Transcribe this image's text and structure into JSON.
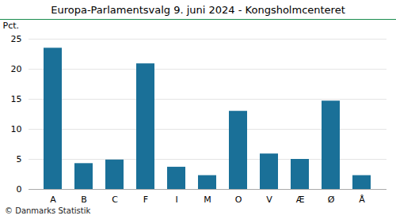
{
  "chart_data": {
    "type": "bar",
    "title": "Europa-Parlamentsvalg 9. juni 2024 - Kongsholmcenteret",
    "categories": [
      "A",
      "B",
      "C",
      "F",
      "I",
      "M",
      "O",
      "V",
      "Æ",
      "Ø",
      "Å"
    ],
    "values": [
      23.5,
      4.3,
      4.9,
      20.9,
      3.7,
      2.3,
      13.0,
      5.9,
      5.0,
      14.7,
      2.3
    ],
    "color": "#1a7098",
    "ylabel": "Pct.",
    "ylim": [
      0,
      25
    ],
    "yticks": [
      0,
      5,
      10,
      15,
      20,
      25
    ],
    "grid": true,
    "footer": "© Danmarks Statistik"
  }
}
